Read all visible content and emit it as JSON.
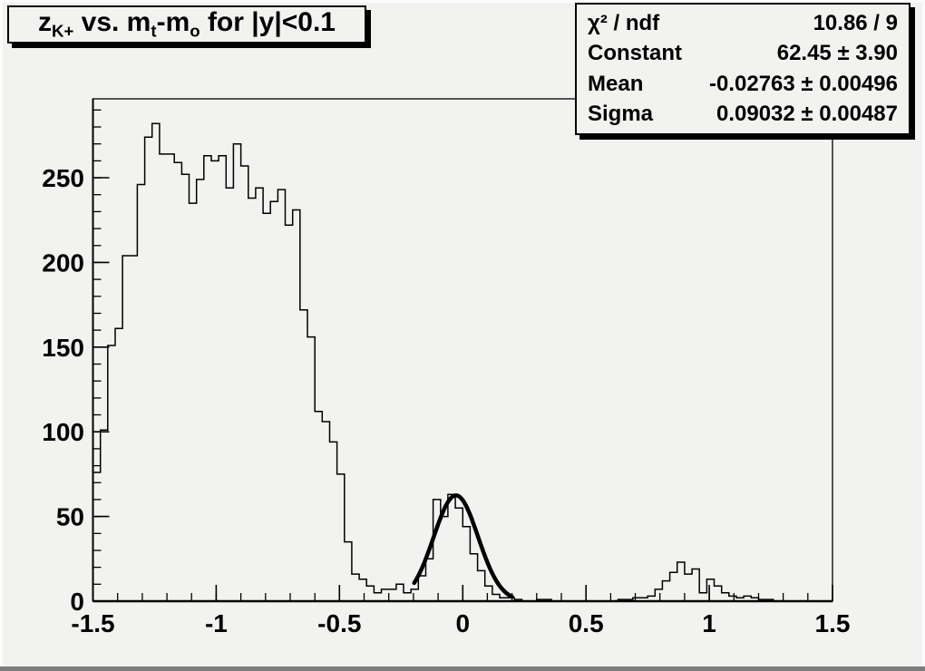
{
  "colors": {
    "background": "#f2f2f0",
    "box_background": "#f2f2f0",
    "edge_light": "#fcfcfc",
    "edge_dark": "#7d7d7d",
    "line_color": "#000000",
    "shadow": "#000000"
  },
  "title": {
    "plain": "z_K+ vs. m_t-m_o for |y|<0.1",
    "parts": [
      {
        "text": "z",
        "sub": false
      },
      {
        "text": "K+",
        "sub": true
      },
      {
        "text": " vs. m",
        "sub": false
      },
      {
        "text": "t",
        "sub": true
      },
      {
        "text": "-m",
        "sub": false
      },
      {
        "text": "o",
        "sub": true
      },
      {
        "text": " for |y|<0.1",
        "sub": false
      }
    ]
  },
  "stats": {
    "rows": [
      {
        "label": "χ² / ndf",
        "value": "10.86 / 9"
      },
      {
        "label": "Constant",
        "value": "62.45 ± 3.90"
      },
      {
        "label": "Mean",
        "value": "-0.02763 ± 0.00496"
      },
      {
        "label": "Sigma",
        "value": "0.09032 ± 0.00487"
      }
    ]
  },
  "chart_data": {
    "type": "bar",
    "title": "z_K+ vs. m_t-m_o for |y|<0.1",
    "xlabel": "",
    "ylabel": "",
    "grid": false,
    "legend_position": "stats box, top-right",
    "xlim": [
      -1.5,
      1.5
    ],
    "ylim": [
      0,
      296.6
    ],
    "x_major_ticks": [
      -1.5,
      -1,
      -0.5,
      0,
      0.5,
      1,
      1.5
    ],
    "x_tick_labels": [
      "-1.5",
      "-1",
      "-0.5",
      "0",
      "0.5",
      "1",
      "1.5"
    ],
    "x_minor_step": 0.1,
    "y_major_ticks": [
      0,
      50,
      100,
      150,
      200,
      250
    ],
    "y_tick_labels": [
      "0",
      "50",
      "100",
      "150",
      "200",
      "250"
    ],
    "y_minor_step": 10,
    "histogram": {
      "bin_start": -1.5,
      "bin_width": 0.03,
      "n_bins": 100,
      "values": [
        76,
        101,
        151,
        161,
        204,
        204,
        246,
        274,
        282,
        264,
        264,
        259,
        252,
        235,
        249,
        263,
        260,
        263,
        244,
        270,
        257,
        238,
        244,
        229,
        236,
        243,
        222,
        231,
        172,
        156,
        112,
        106,
        94,
        75,
        35,
        16,
        13,
        9,
        5,
        7,
        7,
        10,
        5,
        7,
        15,
        25,
        60,
        50,
        63,
        55,
        44,
        28,
        18,
        9,
        4,
        2,
        2,
        1,
        0,
        0,
        1,
        1,
        0,
        0,
        0,
        0,
        0,
        0,
        0,
        0,
        0,
        1,
        1,
        2,
        2,
        3,
        7,
        12,
        17,
        23,
        16,
        19,
        5,
        13,
        9,
        5,
        3,
        2,
        3,
        2,
        1,
        1,
        0,
        0,
        0,
        0,
        0,
        0,
        0,
        0
      ]
    },
    "fit": {
      "type": "gaussian",
      "constant": 62.45,
      "mean": -0.02763,
      "sigma": 0.09032,
      "chi2": 10.86,
      "ndf": 9,
      "draw_range": [
        -0.197,
        0.2
      ]
    }
  }
}
